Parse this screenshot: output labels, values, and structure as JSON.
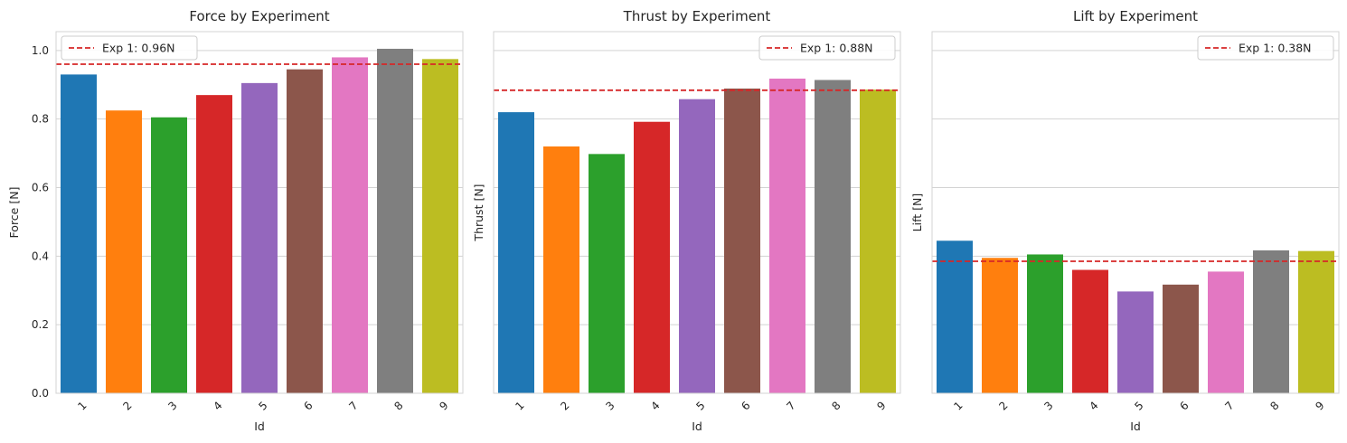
{
  "chart_data": [
    {
      "type": "bar",
      "title": "Force by Experiment",
      "xlabel": "Id",
      "ylabel": "Force [N]",
      "categories": [
        "1",
        "2",
        "3",
        "4",
        "5",
        "6",
        "7",
        "8",
        "9"
      ],
      "values": [
        0.93,
        0.825,
        0.805,
        0.87,
        0.905,
        0.945,
        0.98,
        1.005,
        0.975
      ],
      "ylim": [
        0,
        1.055
      ],
      "yticks": [
        "0.0",
        "0.2",
        "0.4",
        "0.6",
        "0.8",
        "1.0"
      ],
      "show_ytick_labels": true,
      "reference_line": {
        "value": 0.96,
        "label": "Exp 1: 0.96N",
        "color": "#d62728",
        "style": "dashed"
      },
      "legend_position": "top-left",
      "grid": "y"
    },
    {
      "type": "bar",
      "title": "Thrust by Experiment",
      "xlabel": "Id",
      "ylabel": "Thrust [N]",
      "categories": [
        "1",
        "2",
        "3",
        "4",
        "5",
        "6",
        "7",
        "8",
        "9"
      ],
      "values": [
        0.82,
        0.72,
        0.698,
        0.792,
        0.858,
        0.889,
        0.918,
        0.914,
        0.886
      ],
      "ylim": [
        0,
        1.055
      ],
      "yticks": [
        "0.0",
        "0.2",
        "0.4",
        "0.6",
        "0.8",
        "1.0"
      ],
      "show_ytick_labels": false,
      "reference_line": {
        "value": 0.884,
        "label": "Exp 1: 0.88N",
        "color": "#d62728",
        "style": "dashed"
      },
      "legend_position": "top-right",
      "grid": "y"
    },
    {
      "type": "bar",
      "title": "Lift by Experiment",
      "xlabel": "Id",
      "ylabel": "Lift [N]",
      "categories": [
        "1",
        "2",
        "3",
        "4",
        "5",
        "6",
        "7",
        "8",
        "9"
      ],
      "values": [
        0.445,
        0.395,
        0.405,
        0.36,
        0.297,
        0.317,
        0.355,
        0.417,
        0.415
      ],
      "ylim": [
        0,
        1.055
      ],
      "yticks": [
        "0.0",
        "0.2",
        "0.4",
        "0.6",
        "0.8",
        "1.0"
      ],
      "show_ytick_labels": false,
      "reference_line": {
        "value": 0.385,
        "label": "Exp 1: 0.38N",
        "color": "#d62728",
        "style": "dashed"
      },
      "legend_position": "top-right",
      "grid": "y"
    }
  ],
  "palette": [
    "#1f77b4",
    "#ff7f0e",
    "#2ca02c",
    "#d62728",
    "#9467bd",
    "#8c564b",
    "#e377c2",
    "#7f7f7f",
    "#bcbd22"
  ]
}
